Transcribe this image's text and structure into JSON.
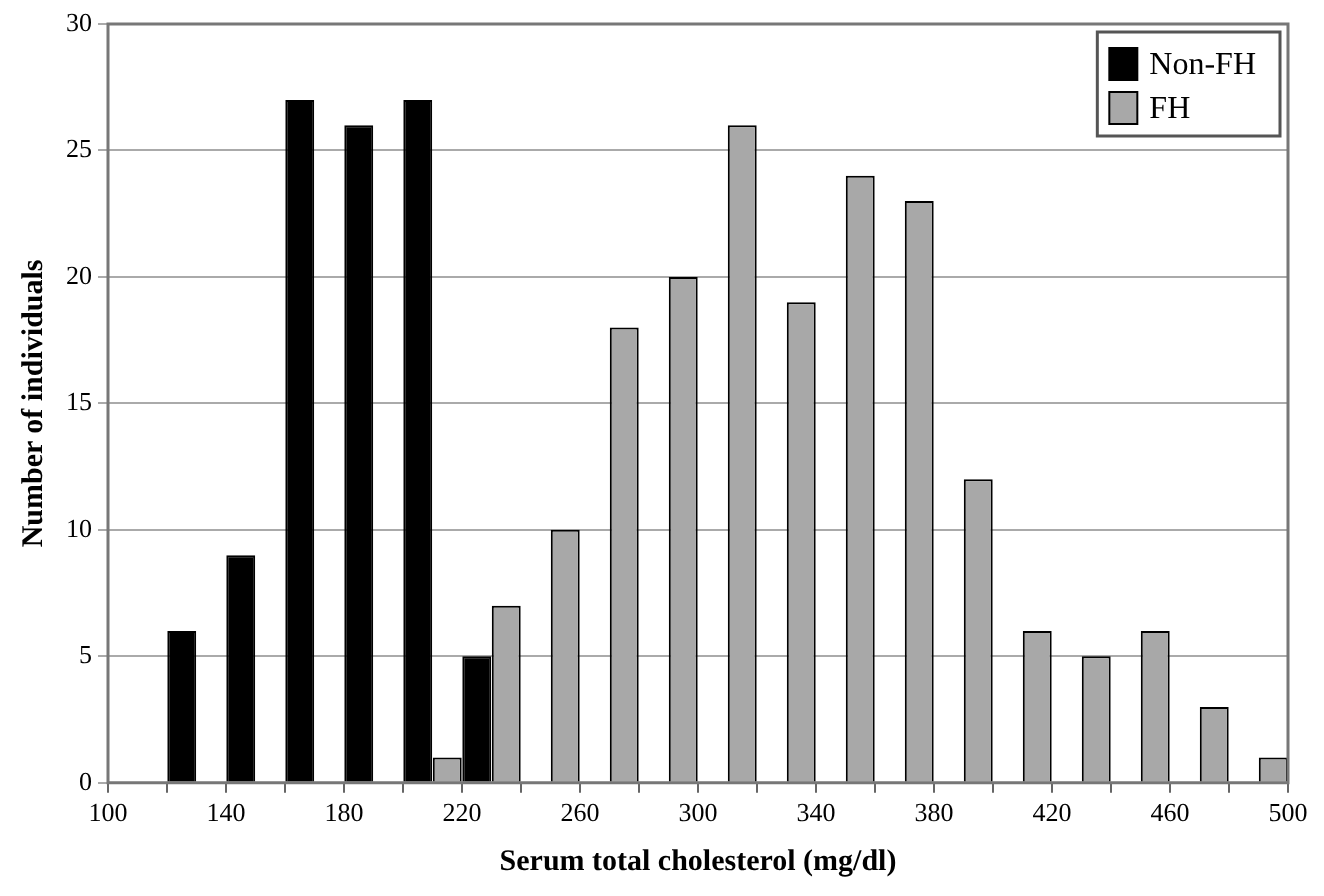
{
  "chart_data": {
    "type": "bar",
    "xlabel": "Serum total cholesterol (mg/dl)",
    "ylabel": "Number of individuals",
    "x": [
      130,
      150,
      170,
      190,
      210,
      230,
      250,
      270,
      290,
      310,
      330,
      350,
      370,
      390,
      410,
      430,
      450,
      470,
      490
    ],
    "series": [
      {
        "name": "Non-FH",
        "color": "#000000",
        "values": [
          6,
          9,
          27,
          26,
          27,
          5,
          null,
          null,
          null,
          null,
          null,
          null,
          null,
          null,
          null,
          null,
          null,
          null,
          null
        ]
      },
      {
        "name": "FH",
        "color": "#a8a8a8",
        "values": [
          null,
          null,
          null,
          null,
          1,
          7,
          10,
          18,
          20,
          26,
          19,
          24,
          23,
          12,
          6,
          5,
          6,
          3,
          1
        ]
      }
    ],
    "xlim": [
      100,
      500
    ],
    "xticks": [
      100,
      {
        "value": 120,
        "label": null
      },
      140,
      {
        "value": 160,
        "label": null
      },
      180,
      {
        "value": 200,
        "label": null
      },
      220,
      {
        "value": 240,
        "label": null
      },
      260,
      {
        "value": 280,
        "label": null
      },
      300,
      {
        "value": 320,
        "label": null
      },
      340,
      {
        "value": 360,
        "label": null
      },
      380,
      {
        "value": 400,
        "label": null
      },
      420,
      {
        "value": 440,
        "label": null
      },
      460,
      {
        "value": 480,
        "label": null
      },
      500
    ],
    "ylim": [
      0,
      30
    ],
    "yticks": [
      0,
      5,
      10,
      15,
      20,
      25,
      30
    ],
    "grid": "y",
    "legend": "top right"
  }
}
